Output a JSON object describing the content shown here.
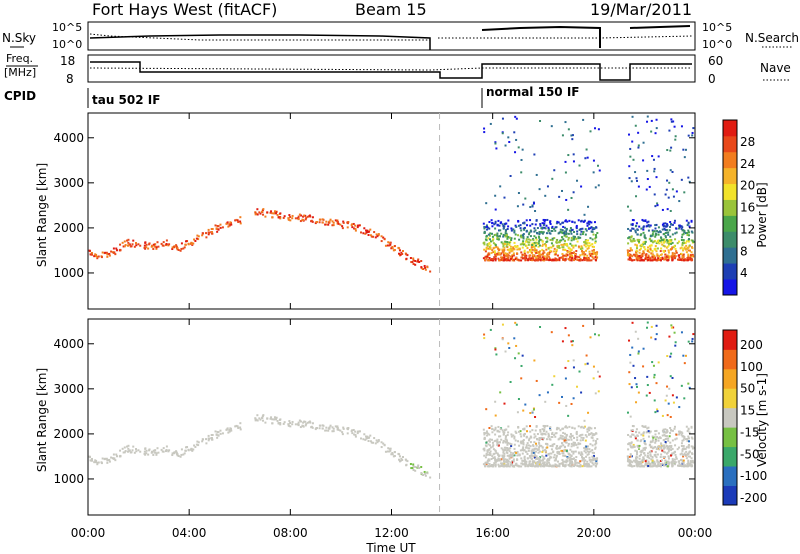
{
  "header": {
    "title": "Fort Hays West (fitACF)",
    "beam": "Beam 15",
    "date": "19/Mar/2011"
  },
  "top_panels": {
    "nsky_label": "N.Sky",
    "nsearch_label": "N.Search",
    "nsky_ticks": [
      "10^5",
      "10^0"
    ],
    "nsearch_ticks": [
      "10^5",
      "10^0"
    ],
    "freq_label": "Freq.",
    "freq_unit": "[MHz]",
    "freq_ticks": [
      "18",
      "8"
    ],
    "nave_label": "Nave",
    "nave_ticks": [
      "60",
      "0"
    ],
    "cpid_label": "CPID",
    "cpid_modes": [
      "tau 502 IF",
      "normal 150 IF"
    ]
  },
  "chart_data": [
    {
      "type": "heatmap",
      "name": "power-panel",
      "ylabel": "Slant Range [km]",
      "xlabel": "",
      "yticks": [
        "1000",
        "2000",
        "3000",
        "4000"
      ],
      "ylim": [
        200,
        4550
      ],
      "xlim": [
        0,
        24
      ],
      "colorbar": {
        "label": "Power [dB]",
        "ticks": [
          "4",
          "8",
          "12",
          "16",
          "20",
          "24",
          "28"
        ],
        "colors": [
          "#1515e6",
          "#1e3fb4",
          "#2f6f91",
          "#3c8c6a",
          "#4aa64a",
          "#9ac43a",
          "#f2e22a",
          "#f5b32a",
          "#f27d1f",
          "#e8481a",
          "#e01c12"
        ]
      },
      "series": [
        {
          "x": [
            0.0,
            0.5,
            1.0,
            1.5,
            2.0,
            2.5,
            3.0,
            3.5,
            4.0,
            4.5,
            5.0,
            5.5,
            6.0
          ],
          "values": [
            1450,
            1400,
            1500,
            1700,
            1650,
            1600,
            1700,
            1550,
            1700,
            1850,
            2000,
            2100,
            2200
          ]
        },
        {
          "x": [
            6.5,
            7.0,
            7.5,
            8.0,
            8.5,
            9.0,
            9.5,
            10.0,
            10.5,
            11.0,
            11.5,
            12.0,
            12.5,
            13.0,
            13.5
          ],
          "values": [
            2400,
            2350,
            2300,
            2250,
            2250,
            2200,
            2150,
            2100,
            2050,
            1950,
            1800,
            1600,
            1400,
            1250,
            1100
          ]
        }
      ]
    },
    {
      "type": "heatmap",
      "name": "velocity-panel",
      "ylabel": "Slant Range [km]",
      "xlabel": "Time UT",
      "yticks": [
        "1000",
        "2000",
        "3000",
        "4000"
      ],
      "ylim": [
        200,
        4550
      ],
      "xlim": [
        0,
        24
      ],
      "xticks": [
        "00:00",
        "04:00",
        "08:00",
        "12:00",
        "16:00",
        "20:00",
        "00:00"
      ],
      "colorbar": {
        "label": "Velocity [m s-1]",
        "ticks": [
          "200",
          "100",
          "50",
          "15",
          "-15",
          "-50",
          "-100",
          "-200"
        ],
        "colors": [
          "#1b3bb8",
          "#2a6fbf",
          "#3aa86a",
          "#76c043",
          "#c8c8c0",
          "#f0d23a",
          "#f5a623",
          "#f06a1a",
          "#e01c12"
        ]
      }
    }
  ]
}
